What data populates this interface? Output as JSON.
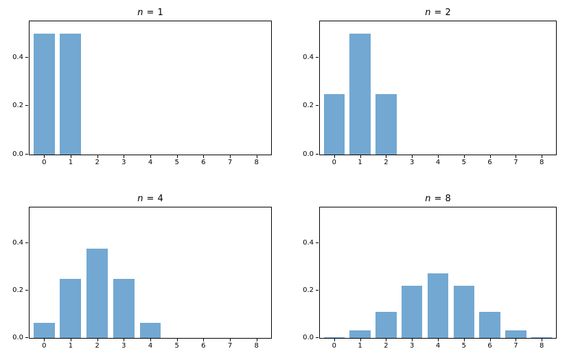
{
  "figure": {
    "background": "#ffffff",
    "bar_color": "#72a8d2",
    "axis_color": "#000000",
    "text_color": "#000000"
  },
  "chart_data": [
    {
      "type": "bar",
      "title": "n = 1",
      "title_var": "n",
      "title_rel": "=",
      "title_val": "1",
      "categories": [
        0,
        1,
        2,
        3,
        4,
        5,
        6,
        7,
        8
      ],
      "values": [
        0.5,
        0.5,
        0,
        0,
        0,
        0,
        0,
        0,
        0
      ],
      "bar_width": 0.8,
      "xlim": [
        -0.55,
        8.55
      ],
      "ylim": [
        0,
        0.55
      ],
      "xtick_labels": [
        "0",
        "1",
        "2",
        "3",
        "4",
        "5",
        "6",
        "7",
        "8"
      ],
      "ytick_values": [
        0,
        0.2,
        0.4
      ],
      "ytick_labels": [
        "0.0",
        "0.2",
        "0.4"
      ],
      "grid": false,
      "legend": "none"
    },
    {
      "type": "bar",
      "title": "n = 2",
      "title_var": "n",
      "title_rel": "=",
      "title_val": "2",
      "categories": [
        0,
        1,
        2,
        3,
        4,
        5,
        6,
        7,
        8
      ],
      "values": [
        0.25,
        0.5,
        0.25,
        0,
        0,
        0,
        0,
        0,
        0
      ],
      "bar_width": 0.8,
      "xlim": [
        -0.55,
        8.55
      ],
      "ylim": [
        0,
        0.55
      ],
      "xtick_labels": [
        "0",
        "1",
        "2",
        "3",
        "4",
        "5",
        "6",
        "7",
        "8"
      ],
      "ytick_values": [
        0,
        0.2,
        0.4
      ],
      "ytick_labels": [
        "0.0",
        "0.2",
        "0.4"
      ],
      "grid": false,
      "legend": "none"
    },
    {
      "type": "bar",
      "title": "n = 4",
      "title_var": "n",
      "title_rel": "=",
      "title_val": "4",
      "categories": [
        0,
        1,
        2,
        3,
        4,
        5,
        6,
        7,
        8
      ],
      "values": [
        0.0625,
        0.25,
        0.375,
        0.25,
        0.0625,
        0,
        0,
        0,
        0
      ],
      "bar_width": 0.8,
      "xlim": [
        -0.55,
        8.55
      ],
      "ylim": [
        0,
        0.55
      ],
      "xtick_labels": [
        "0",
        "1",
        "2",
        "3",
        "4",
        "5",
        "6",
        "7",
        "8"
      ],
      "ytick_values": [
        0,
        0.2,
        0.4
      ],
      "ytick_labels": [
        "0.0",
        "0.2",
        "0.4"
      ],
      "grid": false,
      "legend": "none"
    },
    {
      "type": "bar",
      "title": "n = 8",
      "title_var": "n",
      "title_rel": "=",
      "title_val": "8",
      "categories": [
        0,
        1,
        2,
        3,
        4,
        5,
        6,
        7,
        8
      ],
      "values": [
        0.00390625,
        0.03125,
        0.109375,
        0.21875,
        0.2734375,
        0.21875,
        0.109375,
        0.03125,
        0.00390625
      ],
      "bar_width": 0.8,
      "xlim": [
        -0.55,
        8.55
      ],
      "ylim": [
        0,
        0.55
      ],
      "xtick_labels": [
        "0",
        "1",
        "2",
        "3",
        "4",
        "5",
        "6",
        "7",
        "8"
      ],
      "ytick_values": [
        0,
        0.2,
        0.4
      ],
      "ytick_labels": [
        "0.0",
        "0.2",
        "0.4"
      ],
      "grid": false,
      "legend": "none"
    }
  ]
}
